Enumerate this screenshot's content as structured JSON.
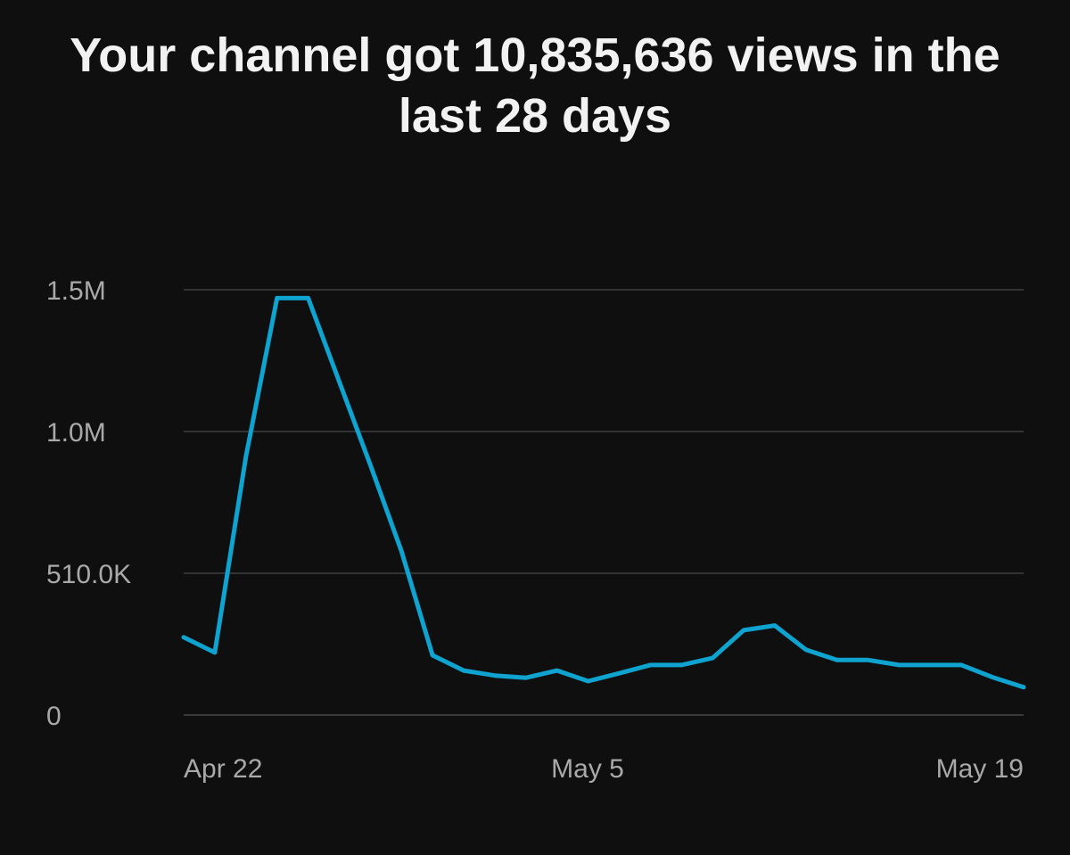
{
  "chart_data": {
    "type": "line",
    "title": "Your channel got 10,835,636 views in the last 28 days",
    "xlabel": "",
    "ylabel": "",
    "x_tick_labels": [
      "Apr 22",
      "May 5",
      "May 19"
    ],
    "y_tick_labels": [
      "0",
      "510.0K",
      "1.0M",
      "1.5M"
    ],
    "y_tick_values": [
      0,
      510000,
      1020000,
      1530000
    ],
    "ylim": [
      0,
      1530000
    ],
    "grid": true,
    "series": [
      {
        "name": "Views",
        "color": "#0fa3cf",
        "values": [
          280000,
          225000,
          930000,
          1500000,
          1500000,
          1200000,
          900000,
          590000,
          215000,
          160000,
          142000,
          134000,
          160000,
          122000,
          150000,
          180000,
          180000,
          205000,
          305000,
          322000,
          235000,
          198000,
          198000,
          180000,
          180000,
          180000,
          136000,
          100000
        ]
      }
    ],
    "x_tick_indices": [
      1,
      13,
      27
    ]
  }
}
